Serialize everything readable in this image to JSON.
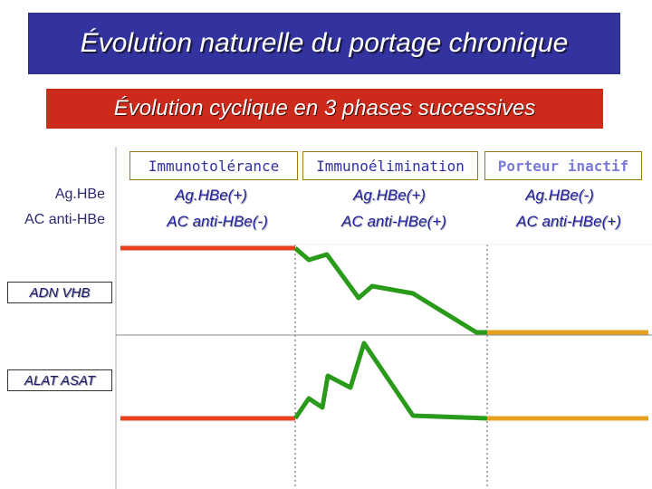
{
  "title": "Évolution naturelle du portage chronique",
  "subtitle": "Évolution cyclique en 3 phases successives",
  "phases": [
    {
      "label": "Immunotolérance",
      "ag": "Ag.HBe(+)",
      "ac": "AC anti-HBe(-)"
    },
    {
      "label": "Immunoélimination",
      "ag": "Ag.HBe(+)",
      "ac": "AC anti-HBe(+)"
    },
    {
      "label": "Porteur  inactif",
      "ag": "Ag.HBe(-)",
      "ac": "AC anti-HBe(+)"
    }
  ],
  "markers": {
    "ag": "Ag.HBe",
    "ac": "AC anti-HBe"
  },
  "curve_labels": {
    "adn": "ADN   VHB",
    "alat": "ALAT ASAT"
  },
  "colors": {
    "title_bg": "#3333a0",
    "subtitle_bg": "#cc2a1a",
    "phase1_line": "#e8401a",
    "phase2_line": "#2a9a1a",
    "phase3_line": "#e8a020",
    "axis": "#888888"
  }
}
